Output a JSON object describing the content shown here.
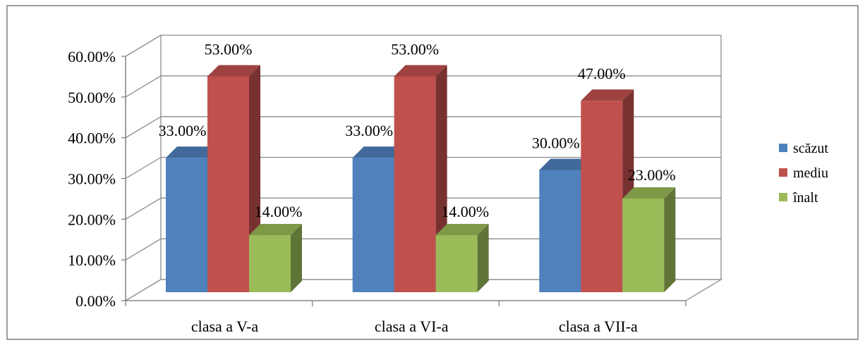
{
  "chart_data": {
    "type": "bar",
    "subtype": "3d-clustered-column",
    "categories": [
      "clasa a V-a",
      "clasa a VI-a",
      "clasa a VII-a"
    ],
    "series": [
      {
        "name": "scăzut",
        "values": [
          33,
          33,
          30
        ],
        "labels": [
          "33.00%",
          "33.00%",
          "30.00%"
        ],
        "color": "#4F81BD"
      },
      {
        "name": "mediu",
        "values": [
          53,
          53,
          47
        ],
        "labels": [
          "53.00%",
          "53.00%",
          "47.00%"
        ],
        "color": "#C0504D"
      },
      {
        "name": "înalt",
        "values": [
          14,
          14,
          23
        ],
        "labels": [
          "14.00%",
          "14.00%",
          "23.00%"
        ],
        "color": "#9BBB59"
      }
    ],
    "ylim": [
      0,
      60
    ],
    "yticks": [
      0,
      10,
      20,
      30,
      40,
      50,
      60
    ],
    "ytick_labels": [
      "0.00%",
      "10.00%",
      "20.00%",
      "30.00%",
      "40.00%",
      "50.00%",
      "60.00%"
    ],
    "grid": true,
    "legend_position": "right",
    "title": "",
    "xlabel": "",
    "ylabel": ""
  }
}
